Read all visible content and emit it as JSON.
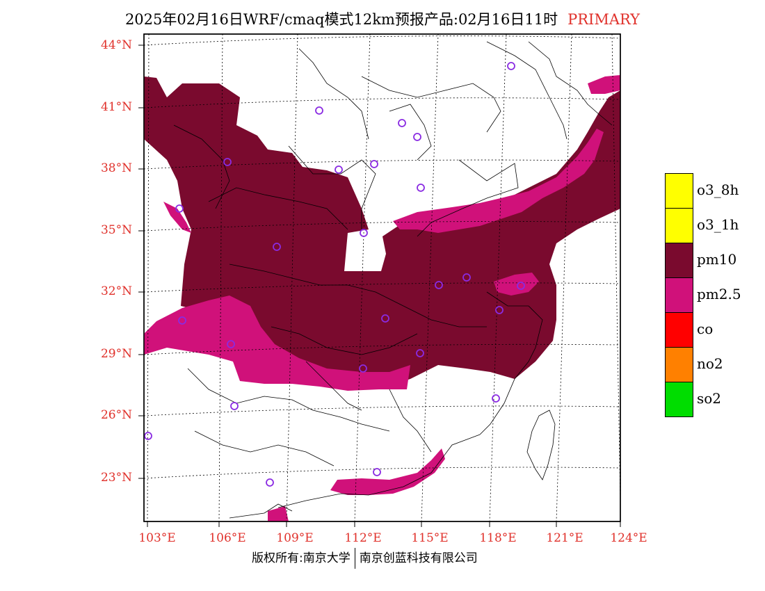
{
  "header": {
    "title": "2025年02月16日WRF/cmaq模式12km预报产品:02月16日11时",
    "tag": "PRIMARY"
  },
  "axes": {
    "lat_labels": [
      "44°N",
      "41°N",
      "38°N",
      "35°N",
      "32°N",
      "29°N",
      "26°N",
      "23°N"
    ],
    "lon_labels": [
      "103°E",
      "106°E",
      "109°E",
      "112°E",
      "115°E",
      "118°E",
      "121°E",
      "124°E"
    ]
  },
  "legend": {
    "items": [
      {
        "label": "o3_8h",
        "color": "#ffff00"
      },
      {
        "label": "o3_1h",
        "color": "#ffff00"
      },
      {
        "label": "pm10",
        "color": "#7a0a2e"
      },
      {
        "label": "pm2.5",
        "color": "#d0117a"
      },
      {
        "label": "co",
        "color": "#ff0000"
      },
      {
        "label": "no2",
        "color": "#ff8000"
      },
      {
        "label": "so2",
        "color": "#00dd00"
      }
    ]
  },
  "footer": {
    "copyright": "版权所有:南京大学",
    "company": "南京创蓝科技有限公司"
  },
  "colors": {
    "pm10": "#7a0a2e",
    "pm25": "#d0117a",
    "station": "#8a2be2",
    "label": "#e0312b"
  }
}
